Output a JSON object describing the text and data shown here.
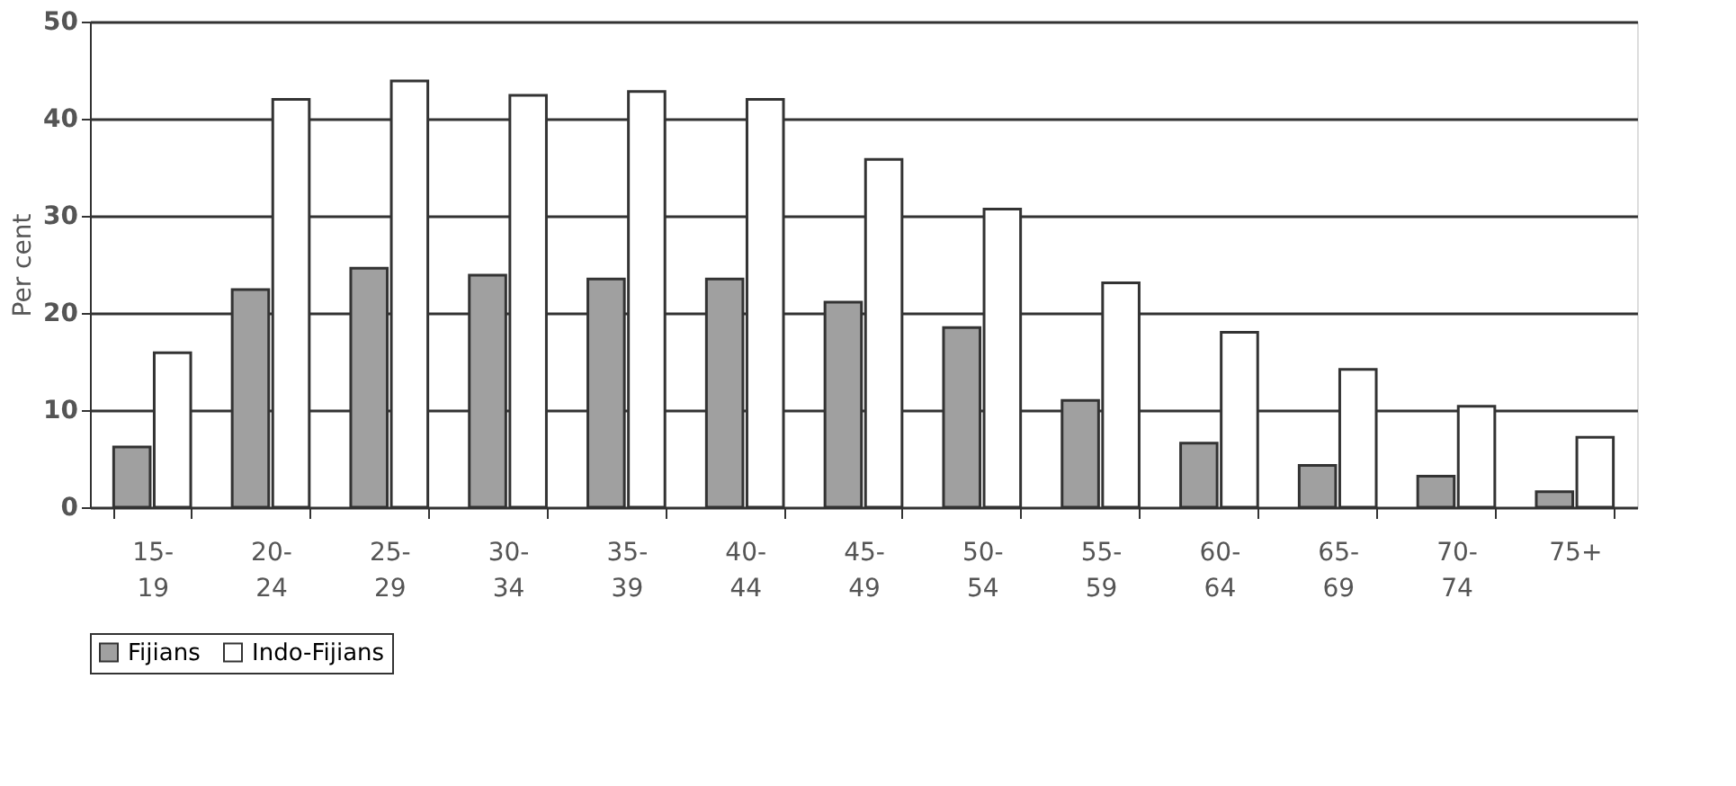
{
  "chart_data": {
    "type": "bar",
    "ylabel": "Per cent",
    "categories": [
      "15-19",
      "20-24",
      "25-29",
      "30-34",
      "35-39",
      "40-44",
      "45-49",
      "50-54",
      "55-59",
      "60-64",
      "65-69",
      "70-74",
      "75+"
    ],
    "series": [
      {
        "name": "Fijians",
        "color": "#a0a0a0",
        "values": [
          6.2,
          22.4,
          24.6,
          23.9,
          23.5,
          23.5,
          21.1,
          18.5,
          11.0,
          6.6,
          4.3,
          3.2,
          1.6
        ]
      },
      {
        "name": "Indo-Fijians",
        "color": "#ffffff",
        "values": [
          15.9,
          42.0,
          43.9,
          42.4,
          42.8,
          42.0,
          35.8,
          30.7,
          23.1,
          18.0,
          14.2,
          10.4,
          7.2
        ]
      }
    ],
    "ylim": [
      0,
      50
    ],
    "yticks": [
      0,
      10,
      20,
      30,
      40,
      50
    ],
    "grid": "y",
    "legend": "bottom"
  }
}
